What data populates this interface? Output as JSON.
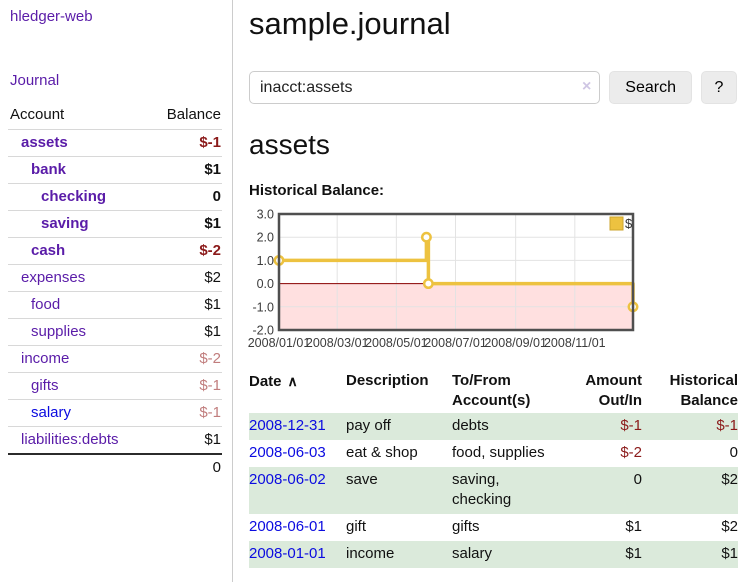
{
  "colors": {
    "link_purple": "#5a1ca8",
    "link_blue": "#0b0be0",
    "negative_red": "#8b1a1a",
    "faded_negative_red": "#c17d7d",
    "row_stripe_green": "#dbeadb",
    "series_gold": "#edc240",
    "negative_region_pink": "rgba(255,0,0,0.12)",
    "zero_line_red": "#8b0000"
  },
  "sidebar": {
    "brand": "hledger-web",
    "journal_link": "Journal",
    "accounts": {
      "account_header": "Account",
      "balance_header": "Balance",
      "rows": [
        {
          "name": "assets",
          "balance": "$-1"
        },
        {
          "name": "bank",
          "balance": "$1"
        },
        {
          "name": "checking",
          "balance": "0"
        },
        {
          "name": "saving",
          "balance": "$1"
        },
        {
          "name": "cash",
          "balance": "$-2"
        },
        {
          "name": "expenses",
          "balance": "$2"
        },
        {
          "name": "food",
          "balance": "$1"
        },
        {
          "name": "supplies",
          "balance": "$1"
        },
        {
          "name": "income",
          "balance": "$-2"
        },
        {
          "name": "gifts",
          "balance": "$-1"
        },
        {
          "name": "salary",
          "balance": "$-1"
        },
        {
          "name": "liabilities:debts",
          "balance": "$1"
        }
      ],
      "total": "0"
    }
  },
  "main": {
    "title": "sample.journal",
    "search": {
      "value": "inacct:assets",
      "clear_icon": "×",
      "search_button": "Search",
      "help_button": "?"
    },
    "account_heading": "assets",
    "chart_label": "Historical Balance:"
  },
  "chart_data": {
    "type": "line",
    "step": true,
    "title": "Historical Balance of assets",
    "series": [
      {
        "name": "$",
        "color": "#edc240",
        "points": [
          [
            "2008-01-01",
            1
          ],
          [
            "2008-06-01",
            2
          ],
          [
            "2008-06-03",
            0
          ],
          [
            "2008-12-31",
            -1
          ]
        ]
      }
    ],
    "x_range": [
      "2008-01-01",
      "2008-12-31"
    ],
    "ylim": [
      -2,
      3
    ],
    "y_ticks": [
      3.0,
      2.0,
      1.0,
      0.0,
      -1.0,
      -2.0
    ],
    "y_tick_labels": [
      "3.0",
      "2.0",
      "1.0",
      "0.0",
      "-1.0",
      "-2.0"
    ],
    "x_ticks": [
      "2008/01/01",
      "2008/03/01",
      "2008/05/01",
      "2008/07/01",
      "2008/09/01",
      "2008/11/01"
    ],
    "grid": true,
    "negative_region_shaded": true,
    "legend": {
      "label": "$",
      "position": "top-right"
    }
  },
  "register": {
    "headers": {
      "date": "Date",
      "description": "Description",
      "accounts": "To/From Account(s)",
      "amount": "Amount Out/In",
      "balance": "Historical Balance"
    },
    "sort_icon": "∧",
    "rows": [
      {
        "date": "2008-12-31",
        "description": "pay off",
        "accounts": "debts",
        "amount": "$-1",
        "balance": "$-1"
      },
      {
        "date": "2008-06-03",
        "description": "eat & shop",
        "accounts": "food, supplies",
        "amount": "$-2",
        "balance": "0"
      },
      {
        "date": "2008-06-02",
        "description": "save",
        "accounts": "saving, checking",
        "amount": "0",
        "balance": "$2"
      },
      {
        "date": "2008-06-01",
        "description": "gift",
        "accounts": "gifts",
        "amount": "$1",
        "balance": "$2"
      },
      {
        "date": "2008-01-01",
        "description": "income",
        "accounts": "salary",
        "amount": "$1",
        "balance": "$1"
      }
    ]
  }
}
